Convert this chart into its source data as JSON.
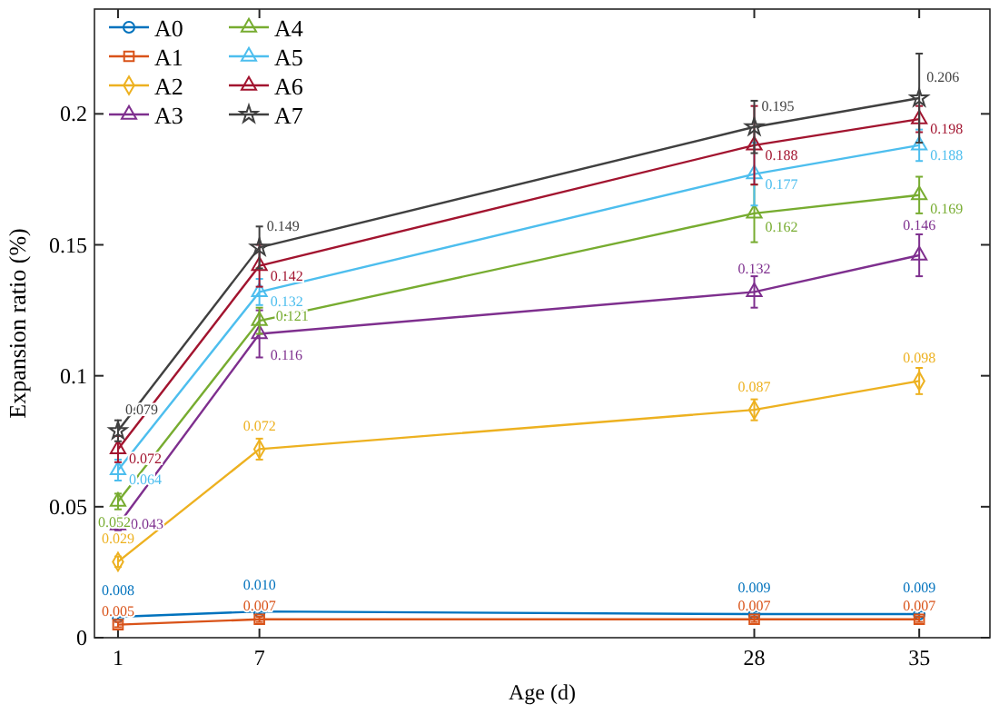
{
  "chart_data": {
    "type": "line",
    "xlabel": "Age (d)",
    "ylabel": "Expansion ratio (%)",
    "x": [
      1,
      7,
      28,
      35
    ],
    "xlim": [
      0,
      38
    ],
    "xticks": [
      1,
      7,
      28,
      35
    ],
    "ylim": [
      0,
      0.24
    ],
    "yticks": [
      0,
      0.05,
      0.1,
      0.15,
      0.2
    ],
    "grid": false,
    "legend": "top left",
    "line_style": "solid",
    "series": [
      {
        "name": "A0",
        "color": "#0072bd",
        "marker": "circle",
        "values": [
          0.008,
          0.01,
          0.009,
          0.009
        ],
        "value_labels": [
          "0.008",
          "0.010",
          "0.009",
          "0.009"
        ],
        "errors": [
          0.001,
          0.001,
          0.001,
          0.001
        ]
      },
      {
        "name": "A1",
        "color": "#d95319",
        "marker": "square",
        "values": [
          0.005,
          0.007,
          0.007,
          0.007
        ],
        "value_labels": [
          "0.005",
          "0.007",
          "0.007",
          "0.007"
        ],
        "errors": [
          0.001,
          0.001,
          0.001,
          0.001
        ]
      },
      {
        "name": "A2",
        "color": "#edb120",
        "marker": "diamond",
        "values": [
          0.029,
          0.072,
          0.087,
          0.098
        ],
        "value_labels": [
          "0.029",
          "0.072",
          "0.087",
          "0.098"
        ],
        "errors": [
          0.002,
          0.004,
          0.004,
          0.005
        ]
      },
      {
        "name": "A3",
        "color": "#7e2f8e",
        "marker": "triangle",
        "values": [
          0.043,
          0.116,
          0.132,
          0.146
        ],
        "value_labels": [
          "0.043",
          "0.116",
          "0.132",
          "0.146"
        ],
        "errors": [
          0.002,
          0.009,
          0.006,
          0.008
        ]
      },
      {
        "name": "A4",
        "color": "#77ac30",
        "marker": "triangle",
        "values": [
          0.052,
          0.121,
          0.162,
          0.169
        ],
        "value_labels": [
          "0.052",
          "0.121",
          "0.162",
          "0.169"
        ],
        "errors": [
          0.003,
          0.005,
          0.011,
          0.007
        ]
      },
      {
        "name": "A5",
        "color": "#4dbeee",
        "marker": "triangle",
        "values": [
          0.064,
          0.132,
          0.177,
          0.188
        ],
        "value_labels": [
          "0.064",
          "0.132",
          "0.177",
          "0.188"
        ],
        "errors": [
          0.004,
          0.005,
          0.012,
          0.006
        ]
      },
      {
        "name": "A6",
        "color": "#a2142f",
        "marker": "triangle",
        "values": [
          0.072,
          0.142,
          0.188,
          0.198
        ],
        "value_labels": [
          "0.072",
          "0.142",
          "0.188",
          "0.198"
        ],
        "errors": [
          0.005,
          0.008,
          0.015,
          0.005
        ]
      },
      {
        "name": "A7",
        "color": "#404040",
        "marker": "star",
        "values": [
          0.079,
          0.149,
          0.195,
          0.206
        ],
        "value_labels": [
          "0.079",
          "0.149",
          "0.195",
          "0.206"
        ],
        "errors": [
          0.004,
          0.008,
          0.01,
          0.017
        ]
      }
    ]
  }
}
